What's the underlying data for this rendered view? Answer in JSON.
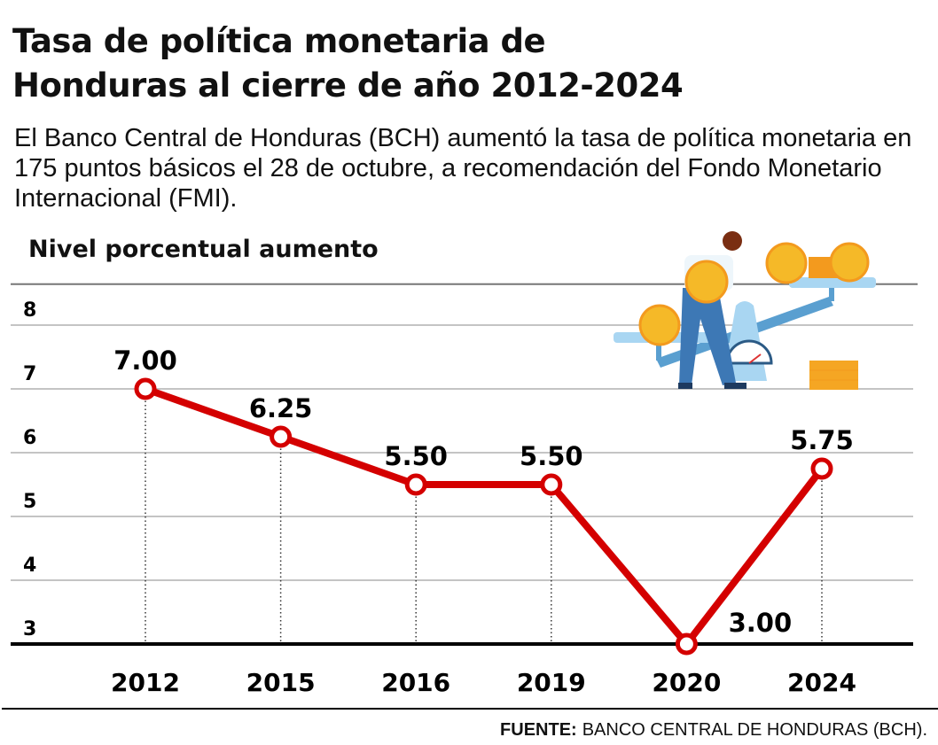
{
  "title_line1": "Tasa de política monetaria de",
  "title_line2": "Honduras al cierre de año 2012-2024",
  "subtitle": "El Banco Central de Honduras (BCH) aumentó la tasa de política monetaria en 175 puntos básicos el 28 de octubre, a recomendación del Fondo Monetario Internacional (FMI).",
  "source_label": "FUENTE:",
  "source_text": "BANCO CENTRAL DE HONDURAS (BCH).",
  "colors": {
    "line": "#d40000",
    "text": "#111111",
    "grid": "#9a9a9a"
  },
  "illustration": "man-balancing-coins-on-scale",
  "chart_data": {
    "type": "line",
    "title": "",
    "ylabel": "Nivel porcentual aumento",
    "xlabel": "",
    "categories": [
      "2012",
      "2015",
      "2016",
      "2019",
      "2020",
      "2024"
    ],
    "values": [
      7.0,
      6.25,
      5.5,
      5.5,
      3.0,
      5.75
    ],
    "data_labels": [
      "7.00",
      "6.25",
      "5.50",
      "5.50",
      "3.00",
      "5.75"
    ],
    "yticks": [
      3,
      4,
      5,
      6,
      7,
      8
    ],
    "ylim": [
      3,
      8.6
    ],
    "grid": true
  }
}
